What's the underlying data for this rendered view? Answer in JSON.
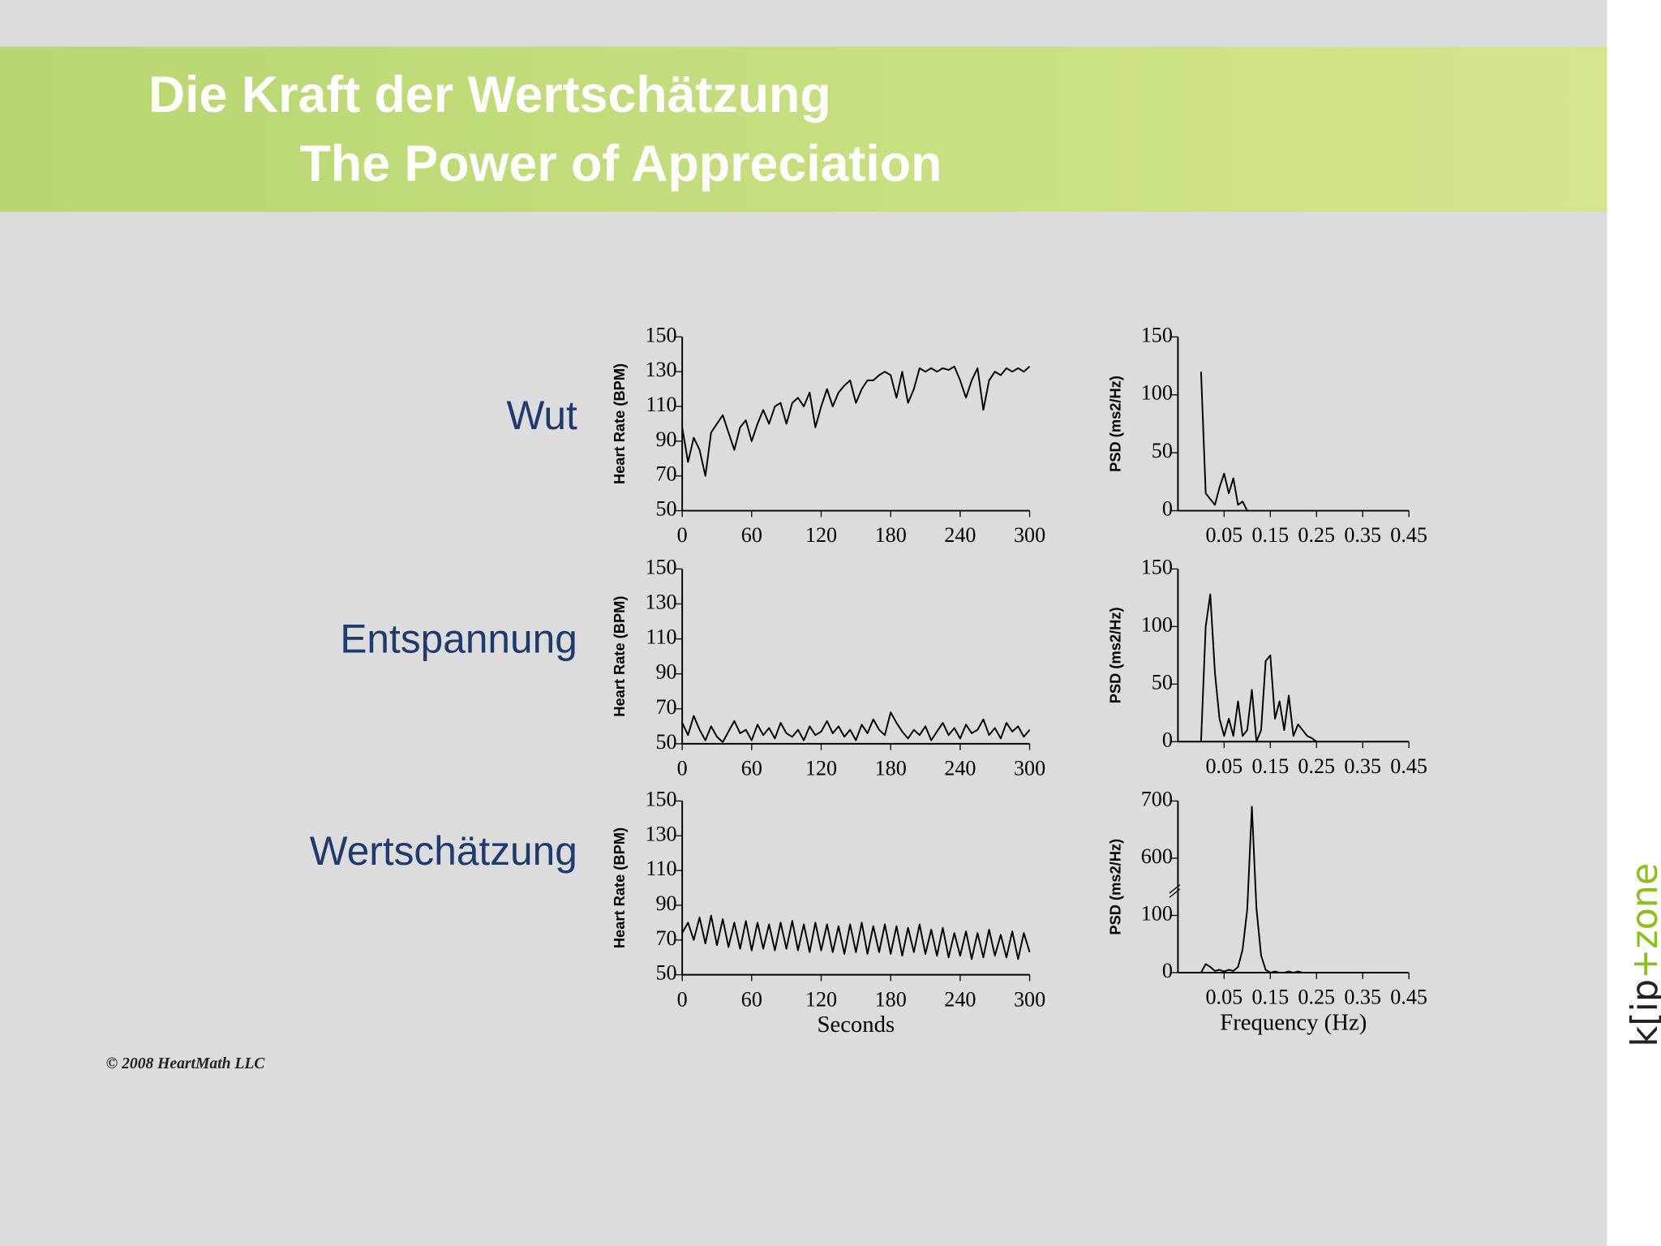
{
  "header": {
    "title": "Die Kraft der Wertschätzung",
    "subtitle": "The Power of Appreciation"
  },
  "row_labels": [
    "Wut",
    "Entspannung",
    "Wertschätzung"
  ],
  "copyright": "© 2008 HeartMath LLC",
  "logo": {
    "left": "k[ip",
    "right": "+zone"
  },
  "chart_data": [
    {
      "type": "line",
      "ylabel": "Heart Rate (BPM)",
      "color": "#000000",
      "x": [
        0,
        5,
        10,
        15,
        20,
        25,
        30,
        35,
        40,
        45,
        50,
        55,
        60,
        65,
        70,
        75,
        80,
        85,
        90,
        95,
        100,
        105,
        110,
        115,
        120,
        125,
        130,
        135,
        140,
        145,
        150,
        155,
        160,
        165,
        170,
        175,
        180,
        185,
        190,
        195,
        200,
        205,
        210,
        215,
        220,
        225,
        230,
        235,
        240,
        245,
        250,
        255,
        260,
        265,
        270,
        275,
        280,
        285,
        290,
        295,
        300
      ],
      "values": [
        98,
        78,
        92,
        85,
        70,
        95,
        100,
        105,
        95,
        85,
        98,
        102,
        90,
        100,
        108,
        100,
        110,
        112,
        100,
        112,
        115,
        110,
        118,
        98,
        110,
        120,
        110,
        118,
        122,
        125,
        112,
        120,
        125,
        125,
        128,
        130,
        128,
        115,
        130,
        112,
        120,
        132,
        130,
        132,
        130,
        132,
        131,
        133,
        125,
        115,
        125,
        132,
        108,
        125,
        130,
        128,
        132,
        130,
        132,
        130,
        133
      ],
      "xlim": [
        0,
        300
      ],
      "xticks": [
        0,
        60,
        120,
        180,
        240,
        300
      ],
      "ylim": [
        50,
        150
      ],
      "yticks": [
        50,
        70,
        90,
        110,
        130,
        150
      ]
    },
    {
      "type": "line",
      "ylabel": "PSD (ms2/Hz)",
      "color": "#000000",
      "x": [
        0,
        0.01,
        0.02,
        0.03,
        0.04,
        0.05,
        0.06,
        0.07,
        0.08,
        0.09,
        0.1
      ],
      "values": [
        120,
        15,
        10,
        5,
        20,
        32,
        15,
        28,
        5,
        8,
        0
      ],
      "xlim": [
        -0.05,
        0.45
      ],
      "xticks": [
        0.05,
        0.15,
        0.25,
        0.35,
        0.45
      ],
      "ylim": [
        0,
        150
      ],
      "yticks": [
        0,
        50,
        100,
        150
      ]
    },
    {
      "type": "line",
      "ylabel": "Heart Rate (BPM)",
      "color": "#000000",
      "x": [
        0,
        5,
        10,
        15,
        20,
        25,
        30,
        35,
        40,
        45,
        50,
        55,
        60,
        65,
        70,
        75,
        80,
        85,
        90,
        95,
        100,
        105,
        110,
        115,
        120,
        125,
        130,
        135,
        140,
        145,
        150,
        155,
        160,
        165,
        170,
        175,
        180,
        185,
        190,
        195,
        200,
        205,
        210,
        215,
        220,
        225,
        230,
        235,
        240,
        245,
        250,
        255,
        260,
        265,
        270,
        275,
        280,
        285,
        290,
        295,
        300
      ],
      "values": [
        62,
        55,
        66,
        58,
        52,
        60,
        54,
        51,
        57,
        63,
        56,
        58,
        52,
        61,
        55,
        59,
        53,
        62,
        56,
        54,
        58,
        52,
        60,
        55,
        57,
        63,
        56,
        60,
        54,
        58,
        52,
        61,
        56,
        64,
        58,
        55,
        68,
        62,
        57,
        53,
        58,
        55,
        60,
        52,
        57,
        62,
        55,
        59,
        53,
        61,
        56,
        58,
        64,
        55,
        59,
        53,
        62,
        57,
        60,
        54,
        58
      ],
      "xlim": [
        0,
        300
      ],
      "xticks": [
        0,
        60,
        120,
        180,
        240,
        300
      ],
      "ylim": [
        50,
        150
      ],
      "yticks": [
        50,
        70,
        90,
        110,
        130,
        150
      ]
    },
    {
      "type": "line",
      "ylabel": "PSD (ms2/Hz)",
      "color": "#000000",
      "x": [
        0,
        0.01,
        0.02,
        0.03,
        0.04,
        0.05,
        0.06,
        0.07,
        0.08,
        0.09,
        0.1,
        0.11,
        0.12,
        0.13,
        0.14,
        0.15,
        0.16,
        0.17,
        0.18,
        0.19,
        0.2,
        0.21,
        0.22,
        0.23,
        0.24,
        0.25
      ],
      "values": [
        0,
        100,
        128,
        60,
        20,
        5,
        20,
        5,
        35,
        5,
        10,
        45,
        0,
        10,
        70,
        75,
        20,
        35,
        10,
        40,
        5,
        15,
        10,
        5,
        3,
        0
      ],
      "xlim": [
        -0.05,
        0.45
      ],
      "xticks": [
        0.05,
        0.15,
        0.25,
        0.35,
        0.45
      ],
      "ylim": [
        0,
        150
      ],
      "yticks": [
        0,
        50,
        100,
        150
      ]
    },
    {
      "type": "line",
      "ylabel": "Heart Rate (BPM)",
      "xlabel": "Seconds",
      "color": "#000000",
      "x": [
        0,
        5,
        10,
        15,
        20,
        25,
        30,
        35,
        40,
        45,
        50,
        55,
        60,
        65,
        70,
        75,
        80,
        85,
        90,
        95,
        100,
        105,
        110,
        115,
        120,
        125,
        130,
        135,
        140,
        145,
        150,
        155,
        160,
        165,
        170,
        175,
        180,
        185,
        190,
        195,
        200,
        205,
        210,
        215,
        220,
        225,
        230,
        235,
        240,
        245,
        250,
        255,
        260,
        265,
        270,
        275,
        280,
        285,
        290,
        295,
        300
      ],
      "values": [
        74,
        80,
        70,
        83,
        68,
        84,
        67,
        82,
        66,
        80,
        65,
        81,
        64,
        80,
        65,
        79,
        64,
        80,
        65,
        81,
        64,
        79,
        63,
        80,
        64,
        79,
        63,
        78,
        62,
        79,
        63,
        80,
        62,
        78,
        63,
        79,
        62,
        78,
        61,
        77,
        63,
        79,
        62,
        76,
        61,
        77,
        60,
        74,
        61,
        75,
        59,
        74,
        60,
        76,
        61,
        73,
        60,
        75,
        59,
        74,
        63
      ],
      "xlim": [
        0,
        300
      ],
      "xticks": [
        0,
        60,
        120,
        180,
        240,
        300
      ],
      "ylim": [
        50,
        150
      ],
      "yticks": [
        50,
        70,
        90,
        110,
        130,
        150
      ]
    },
    {
      "type": "line",
      "ylabel": "PSD (ms2/Hz)",
      "xlabel": "Frequency (Hz)",
      "color": "#000000",
      "x": [
        0,
        0.01,
        0.02,
        0.03,
        0.04,
        0.05,
        0.06,
        0.07,
        0.08,
        0.09,
        0.1,
        0.11,
        0.12,
        0.13,
        0.14,
        0.15,
        0.16,
        0.17,
        0.18,
        0.19,
        0.2,
        0.21,
        0.22
      ],
      "values": [
        0,
        15,
        10,
        3,
        5,
        2,
        5,
        3,
        10,
        40,
        150,
        690,
        160,
        30,
        5,
        0,
        2,
        0,
        0,
        2,
        0,
        2,
        0
      ],
      "xlim": [
        -0.05,
        0.45
      ],
      "xticks": [
        0.05,
        0.15,
        0.25,
        0.35,
        0.45
      ],
      "ylim": [
        0,
        700
      ],
      "yticks": [
        0,
        100,
        600,
        700
      ],
      "y_break": [
        100,
        600
      ]
    }
  ]
}
